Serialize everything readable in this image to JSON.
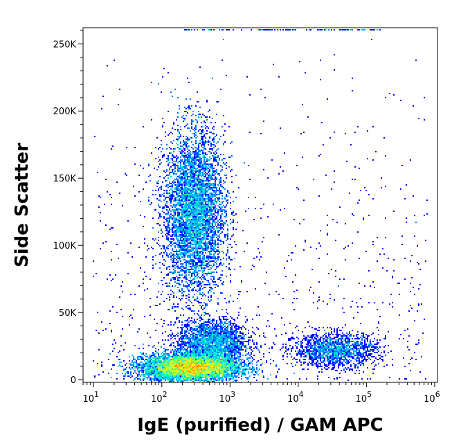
{
  "chart_data": {
    "type": "scatter",
    "style": "density-dot-plot",
    "xlabel": "IgE (purified) / GAM APC",
    "ylabel": "Side Scatter",
    "x_scale": "log",
    "xlim": [
      7,
      1100000
    ],
    "ylim": [
      -2000,
      262000
    ],
    "x_ticks": [
      {
        "value": 10,
        "base": "10",
        "exp": "1"
      },
      {
        "value": 100,
        "base": "10",
        "exp": "2"
      },
      {
        "value": 1000,
        "base": "10",
        "exp": "3"
      },
      {
        "value": 10000,
        "base": "10",
        "exp": "4"
      },
      {
        "value": 100000,
        "base": "10",
        "exp": "5"
      },
      {
        "value": 1000000,
        "base": "10",
        "exp": "6"
      }
    ],
    "y_ticks": [
      {
        "value": 0,
        "label": "0"
      },
      {
        "value": 50000,
        "label": "50K"
      },
      {
        "value": 100000,
        "label": "100K"
      },
      {
        "value": 150000,
        "label": "150K"
      },
      {
        "value": 200000,
        "label": "200K"
      },
      {
        "value": 250000,
        "label": "250K"
      }
    ],
    "density_colors": [
      "#0000ff",
      "#00a8ff",
      "#00ffcc",
      "#ffff00",
      "#ff0000"
    ],
    "grid": false,
    "populations": [
      {
        "x_center": 270,
        "x_spread_decades": 0.35,
        "y_center": 9000,
        "y_spread": 5000,
        "relative_count": 1.0
      },
      {
        "x_center": 300,
        "x_spread_decades": 0.22,
        "y_center": 125000,
        "y_spread": 30000,
        "relative_count": 0.55
      },
      {
        "x_center": 550,
        "x_spread_decades": 0.25,
        "y_center": 28000,
        "y_spread": 8000,
        "relative_count": 0.18
      },
      {
        "x_center": 35000,
        "x_spread_decades": 0.3,
        "y_center": 22000,
        "y_spread": 6000,
        "relative_count": 0.12
      }
    ]
  }
}
